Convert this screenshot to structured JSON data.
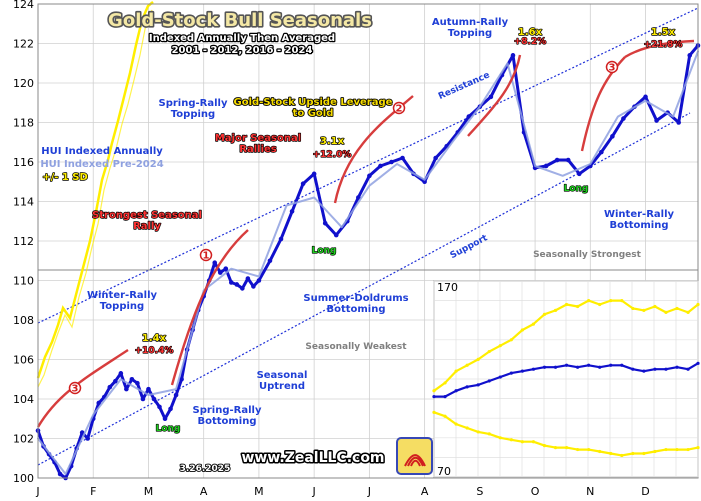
{
  "chart_data": {
    "type": "line",
    "title": "Gold-Stock Bull Seasonals",
    "subtitle": [
      "Indexed Annually Then Averaged",
      "2001 - 2012, 2016 - 2024"
    ],
    "x_ticks": [
      "J",
      "F",
      "M",
      "A",
      "M",
      "J",
      "J",
      "A",
      "S",
      "O",
      "N",
      "D"
    ],
    "y_ticks": [
      100,
      102,
      104,
      106,
      108,
      110,
      112,
      114,
      116,
      118,
      120,
      122,
      124
    ],
    "ylim": [
      100,
      124
    ],
    "grid": true,
    "legend": [
      "HUI Indexed Annually",
      "HUI Indexed Pre-2024",
      "+/- 1 SD"
    ],
    "series": [
      {
        "name": "HUI Indexed Annually",
        "color": "#1010cc",
        "x": [
          0,
          0.1,
          0.2,
          0.3,
          0.4,
          0.5,
          0.6,
          0.7,
          0.8,
          0.9,
          1.0,
          1.1,
          1.2,
          1.3,
          1.4,
          1.5,
          1.6,
          1.7,
          1.8,
          1.9,
          2.0,
          2.1,
          2.2,
          2.3,
          2.4,
          2.5,
          2.6,
          2.7,
          2.8,
          2.9,
          3.0,
          3.1,
          3.2,
          3.3,
          3.4,
          3.5,
          3.6,
          3.7,
          3.8,
          3.9,
          4.0,
          4.2,
          4.4,
          4.6,
          4.8,
          5.0,
          5.2,
          5.4,
          5.6,
          5.8,
          6.0,
          6.2,
          6.4,
          6.6,
          6.8,
          7.0,
          7.2,
          7.4,
          7.6,
          7.8,
          8.0,
          8.2,
          8.4,
          8.6,
          8.8,
          9.0,
          9.2,
          9.4,
          9.6,
          9.8,
          10.0,
          10.2,
          10.4,
          10.6,
          10.8,
          11.0,
          11.2,
          11.4,
          11.6,
          11.8,
          11.95
        ],
        "y": [
          102.4,
          101.6,
          101.2,
          100.8,
          100.2,
          100.0,
          100.6,
          101.5,
          102.3,
          102.0,
          103.0,
          103.8,
          104.1,
          104.6,
          104.9,
          105.3,
          104.5,
          105.0,
          104.8,
          104.0,
          104.5,
          104.0,
          103.6,
          103.0,
          103.5,
          104.2,
          105.0,
          106.5,
          107.5,
          108.5,
          109.2,
          110.0,
          110.9,
          110.4,
          110.6,
          109.9,
          109.8,
          109.6,
          110.1,
          109.7,
          110.0,
          111.0,
          112.1,
          113.5,
          114.9,
          115.4,
          112.9,
          112.3,
          113.0,
          114.2,
          115.3,
          115.8,
          116.0,
          116.2,
          115.4,
          115.0,
          116.2,
          116.8,
          117.5,
          118.3,
          118.8,
          119.3,
          120.4,
          121.4,
          117.5,
          115.7,
          115.8,
          116.1,
          116.1,
          115.4,
          115.8,
          116.5,
          117.3,
          118.2,
          118.8,
          119.3,
          118.1,
          118.5,
          118.0,
          121.4,
          121.9
        ]
      },
      {
        "name": "HUI Indexed Pre-2024",
        "color": "#8fa1e0",
        "x": [
          0,
          0.5,
          1.0,
          1.5,
          2.0,
          2.5,
          3.0,
          3.5,
          4.0,
          4.5,
          5.0,
          5.5,
          6.0,
          6.5,
          7.0,
          7.5,
          8.0,
          8.5,
          9.0,
          9.5,
          10.0,
          10.5,
          11.0,
          11.5,
          11.95
        ],
        "y": [
          102.0,
          100.2,
          103.2,
          105.0,
          104.2,
          104.5,
          109.5,
          110.6,
          110.2,
          113.8,
          114.2,
          112.7,
          114.8,
          115.9,
          115.1,
          117.0,
          118.8,
          121.0,
          115.8,
          115.3,
          115.9,
          118.3,
          119.1,
          118.3,
          121.6
        ]
      }
    ],
    "annotations": [
      "Spring-Rally Topping",
      "Gold-Stock Upside Leverage to Gold",
      "Autumn-Rally Topping",
      "1.6x",
      "+8.2%",
      "1.5x",
      "+21.8%",
      "Major Seasonal Rallies",
      "3.1x",
      "+12.0%",
      "Strongest Seasonal Rally",
      "Resistance",
      "Long",
      "Winter-Rally Bottoming",
      "Support",
      "Seasonally Strongest",
      "Winter-Rally Topping",
      "1.4x",
      "+10.4%",
      "Summer-Doldrums Bottoming",
      "Seasonally Weakest",
      "Seasonal Uptrend",
      "Spring-Rally Bottoming",
      "www.ZealLLC.com",
      "3.26.2025"
    ],
    "inset": {
      "type": "line",
      "y_ticks": [
        170,
        70
      ],
      "series": [
        {
          "name": "yellow-upper",
          "color": "#ffee00",
          "x": [
            0,
            0.5,
            1,
            1.5,
            2,
            2.5,
            3,
            3.5,
            4,
            4.5,
            5,
            5.5,
            6,
            6.5,
            7,
            7.5,
            8,
            8.5,
            9,
            9.5,
            10,
            10.5,
            11,
            11.5,
            11.95
          ],
          "y": [
            114,
            118,
            124,
            127,
            130,
            134,
            137,
            140,
            145,
            148,
            153,
            155,
            158,
            157,
            160,
            158,
            160,
            160,
            156,
            155,
            157,
            154,
            156,
            154,
            158
          ]
        },
        {
          "name": "blue-middle",
          "color": "#1010cc",
          "x": [
            0,
            0.5,
            1,
            1.5,
            2,
            2.5,
            3,
            3.5,
            4,
            4.5,
            5,
            5.5,
            6,
            6.5,
            7,
            7.5,
            8,
            8.5,
            9,
            9.5,
            10,
            10.5,
            11,
            11.5,
            11.95
          ],
          "y": [
            111,
            111,
            114,
            116,
            117,
            119,
            121,
            123,
            124,
            125,
            126,
            126,
            127,
            126,
            127,
            126,
            127,
            127,
            125,
            124,
            125,
            125,
            126,
            125,
            128
          ]
        },
        {
          "name": "yellow-lower",
          "color": "#ffee00",
          "x": [
            0,
            0.5,
            1,
            1.5,
            2,
            2.5,
            3,
            3.5,
            4,
            4.5,
            5,
            5.5,
            6,
            6.5,
            7,
            7.5,
            8,
            8.5,
            9,
            9.5,
            10,
            10.5,
            11,
            11.5,
            11.95
          ],
          "y": [
            103,
            101,
            97,
            95,
            93,
            92,
            90,
            89,
            88,
            88,
            86,
            85,
            85,
            84,
            84,
            83,
            82,
            81,
            82,
            82,
            83,
            84,
            84,
            84,
            85
          ]
        }
      ]
    }
  },
  "colors": {
    "blue": "#1010cc",
    "lightBlue": "#8fa1e0",
    "yellow": "#ffee00",
    "red": "#d11f1f",
    "gray": "#8a8a8a",
    "title": "#f4e8a5"
  }
}
